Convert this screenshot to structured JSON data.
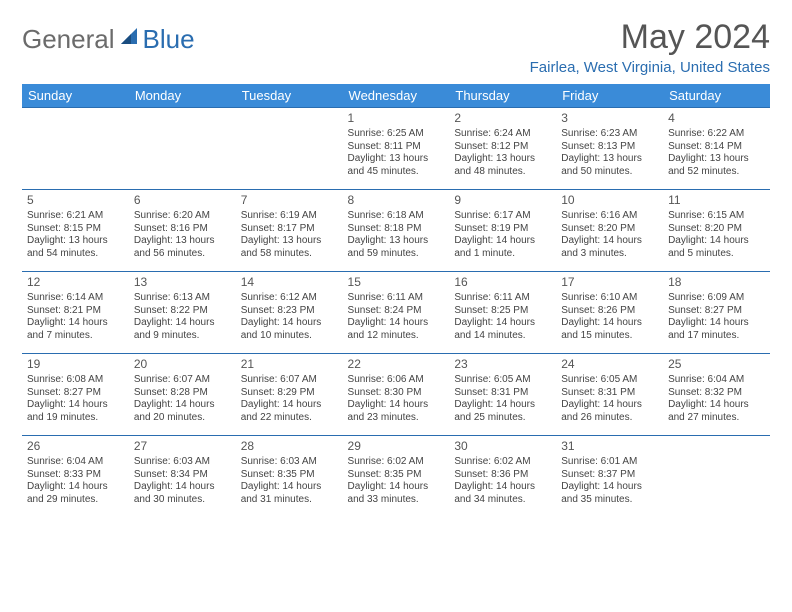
{
  "logo": {
    "general": "General",
    "blue": "Blue"
  },
  "title": "May 2024",
  "location": "Fairlea, West Virginia, United States",
  "colors": {
    "header_bg": "#3a8bd8",
    "border": "#2a6db0",
    "title_color": "#555555",
    "location_color": "#2a6db0"
  },
  "day_headers": [
    "Sunday",
    "Monday",
    "Tuesday",
    "Wednesday",
    "Thursday",
    "Friday",
    "Saturday"
  ],
  "weeks": [
    [
      null,
      null,
      null,
      {
        "n": "1",
        "sr": "6:25 AM",
        "ss": "8:11 PM",
        "dl1": "Daylight: 13 hours",
        "dl2": "and 45 minutes."
      },
      {
        "n": "2",
        "sr": "6:24 AM",
        "ss": "8:12 PM",
        "dl1": "Daylight: 13 hours",
        "dl2": "and 48 minutes."
      },
      {
        "n": "3",
        "sr": "6:23 AM",
        "ss": "8:13 PM",
        "dl1": "Daylight: 13 hours",
        "dl2": "and 50 minutes."
      },
      {
        "n": "4",
        "sr": "6:22 AM",
        "ss": "8:14 PM",
        "dl1": "Daylight: 13 hours",
        "dl2": "and 52 minutes."
      }
    ],
    [
      {
        "n": "5",
        "sr": "6:21 AM",
        "ss": "8:15 PM",
        "dl1": "Daylight: 13 hours",
        "dl2": "and 54 minutes."
      },
      {
        "n": "6",
        "sr": "6:20 AM",
        "ss": "8:16 PM",
        "dl1": "Daylight: 13 hours",
        "dl2": "and 56 minutes."
      },
      {
        "n": "7",
        "sr": "6:19 AM",
        "ss": "8:17 PM",
        "dl1": "Daylight: 13 hours",
        "dl2": "and 58 minutes."
      },
      {
        "n": "8",
        "sr": "6:18 AM",
        "ss": "8:18 PM",
        "dl1": "Daylight: 13 hours",
        "dl2": "and 59 minutes."
      },
      {
        "n": "9",
        "sr": "6:17 AM",
        "ss": "8:19 PM",
        "dl1": "Daylight: 14 hours",
        "dl2": "and 1 minute."
      },
      {
        "n": "10",
        "sr": "6:16 AM",
        "ss": "8:20 PM",
        "dl1": "Daylight: 14 hours",
        "dl2": "and 3 minutes."
      },
      {
        "n": "11",
        "sr": "6:15 AM",
        "ss": "8:20 PM",
        "dl1": "Daylight: 14 hours",
        "dl2": "and 5 minutes."
      }
    ],
    [
      {
        "n": "12",
        "sr": "6:14 AM",
        "ss": "8:21 PM",
        "dl1": "Daylight: 14 hours",
        "dl2": "and 7 minutes."
      },
      {
        "n": "13",
        "sr": "6:13 AM",
        "ss": "8:22 PM",
        "dl1": "Daylight: 14 hours",
        "dl2": "and 9 minutes."
      },
      {
        "n": "14",
        "sr": "6:12 AM",
        "ss": "8:23 PM",
        "dl1": "Daylight: 14 hours",
        "dl2": "and 10 minutes."
      },
      {
        "n": "15",
        "sr": "6:11 AM",
        "ss": "8:24 PM",
        "dl1": "Daylight: 14 hours",
        "dl2": "and 12 minutes."
      },
      {
        "n": "16",
        "sr": "6:11 AM",
        "ss": "8:25 PM",
        "dl1": "Daylight: 14 hours",
        "dl2": "and 14 minutes."
      },
      {
        "n": "17",
        "sr": "6:10 AM",
        "ss": "8:26 PM",
        "dl1": "Daylight: 14 hours",
        "dl2": "and 15 minutes."
      },
      {
        "n": "18",
        "sr": "6:09 AM",
        "ss": "8:27 PM",
        "dl1": "Daylight: 14 hours",
        "dl2": "and 17 minutes."
      }
    ],
    [
      {
        "n": "19",
        "sr": "6:08 AM",
        "ss": "8:27 PM",
        "dl1": "Daylight: 14 hours",
        "dl2": "and 19 minutes."
      },
      {
        "n": "20",
        "sr": "6:07 AM",
        "ss": "8:28 PM",
        "dl1": "Daylight: 14 hours",
        "dl2": "and 20 minutes."
      },
      {
        "n": "21",
        "sr": "6:07 AM",
        "ss": "8:29 PM",
        "dl1": "Daylight: 14 hours",
        "dl2": "and 22 minutes."
      },
      {
        "n": "22",
        "sr": "6:06 AM",
        "ss": "8:30 PM",
        "dl1": "Daylight: 14 hours",
        "dl2": "and 23 minutes."
      },
      {
        "n": "23",
        "sr": "6:05 AM",
        "ss": "8:31 PM",
        "dl1": "Daylight: 14 hours",
        "dl2": "and 25 minutes."
      },
      {
        "n": "24",
        "sr": "6:05 AM",
        "ss": "8:31 PM",
        "dl1": "Daylight: 14 hours",
        "dl2": "and 26 minutes."
      },
      {
        "n": "25",
        "sr": "6:04 AM",
        "ss": "8:32 PM",
        "dl1": "Daylight: 14 hours",
        "dl2": "and 27 minutes."
      }
    ],
    [
      {
        "n": "26",
        "sr": "6:04 AM",
        "ss": "8:33 PM",
        "dl1": "Daylight: 14 hours",
        "dl2": "and 29 minutes."
      },
      {
        "n": "27",
        "sr": "6:03 AM",
        "ss": "8:34 PM",
        "dl1": "Daylight: 14 hours",
        "dl2": "and 30 minutes."
      },
      {
        "n": "28",
        "sr": "6:03 AM",
        "ss": "8:35 PM",
        "dl1": "Daylight: 14 hours",
        "dl2": "and 31 minutes."
      },
      {
        "n": "29",
        "sr": "6:02 AM",
        "ss": "8:35 PM",
        "dl1": "Daylight: 14 hours",
        "dl2": "and 33 minutes."
      },
      {
        "n": "30",
        "sr": "6:02 AM",
        "ss": "8:36 PM",
        "dl1": "Daylight: 14 hours",
        "dl2": "and 34 minutes."
      },
      {
        "n": "31",
        "sr": "6:01 AM",
        "ss": "8:37 PM",
        "dl1": "Daylight: 14 hours",
        "dl2": "and 35 minutes."
      },
      null
    ]
  ],
  "labels": {
    "sunrise": "Sunrise:",
    "sunset": "Sunset:"
  }
}
